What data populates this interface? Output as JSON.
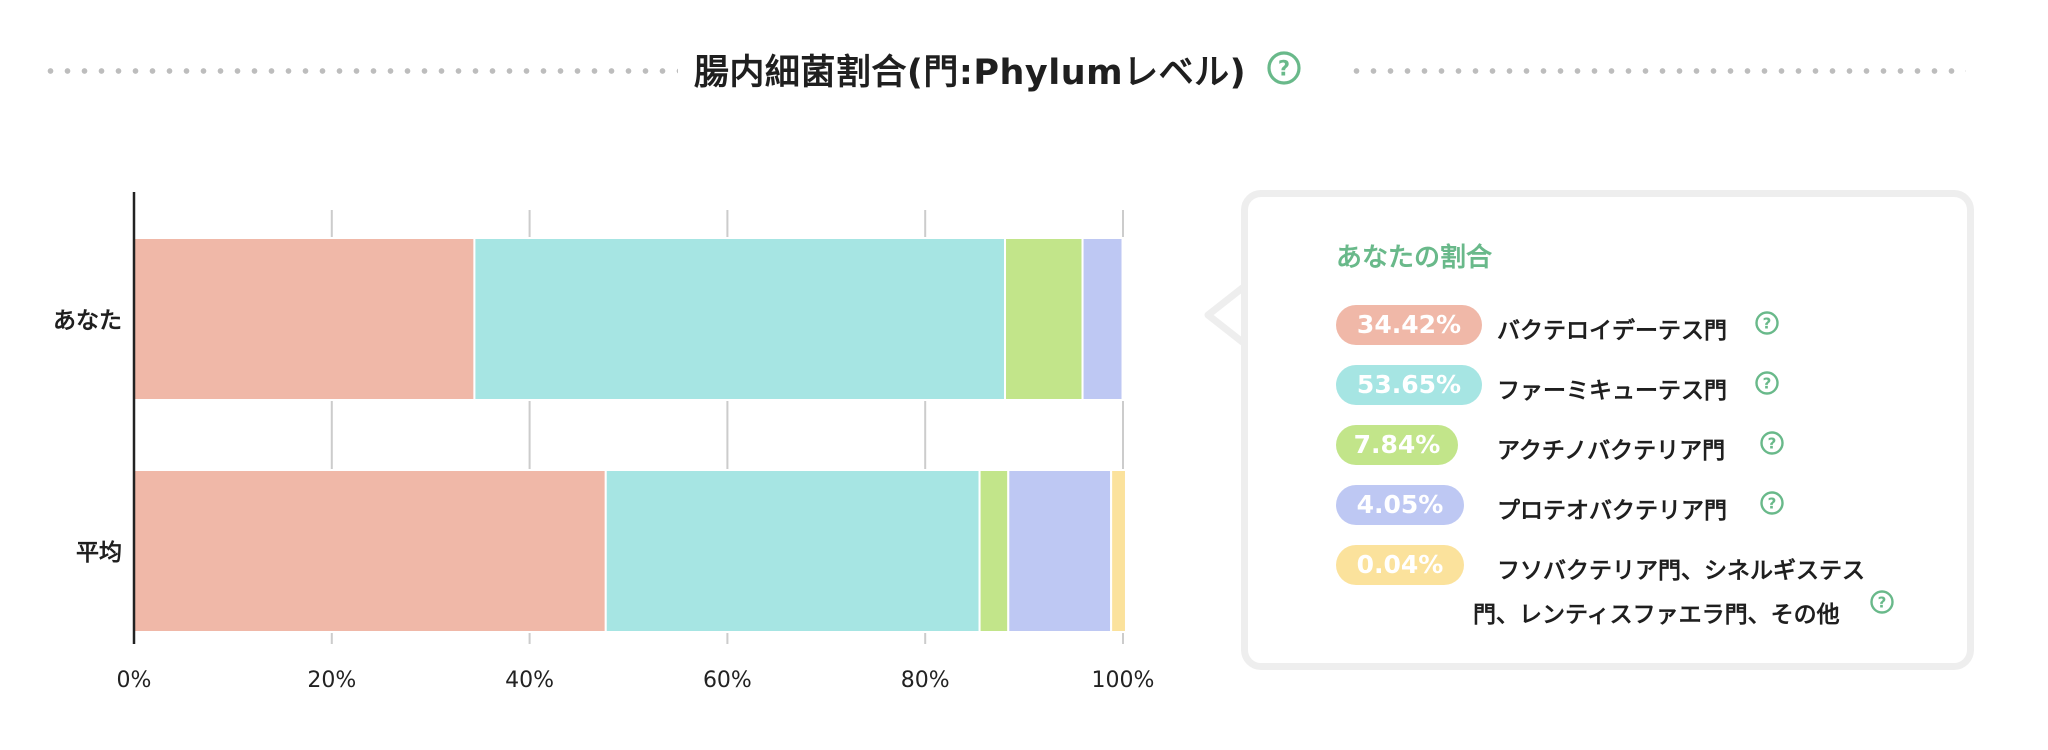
{
  "header": {
    "title": "腸内細菌割合(門:Phylumレベル)",
    "help_icon": "help-circle-icon"
  },
  "chart_data": {
    "type": "bar",
    "orientation": "horizontal",
    "stacked": true,
    "categories": [
      "あなた",
      "平均"
    ],
    "series": [
      {
        "name": "バクテロイデーテス門",
        "color": "#f0b8a8",
        "values": [
          34.42,
          47.7
        ]
      },
      {
        "name": "ファーミキューテス門",
        "color": "#a6e5e3",
        "values": [
          53.65,
          37.8
        ]
      },
      {
        "name": "アクチノバクテリア門",
        "color": "#c2e58a",
        "values": [
          7.84,
          2.9
        ]
      },
      {
        "name": "プロテオバクテリア門",
        "color": "#bec8f3",
        "values": [
          4.05,
          10.4
        ]
      },
      {
        "name": "フソバクテリア門、シネルギステス門、レンティスファエラ門、その他",
        "color": "#fbe29c",
        "values": [
          0.04,
          1.5
        ]
      }
    ],
    "xlim": [
      0,
      100
    ],
    "xticks": [
      "0%",
      "20%",
      "40%",
      "60%",
      "80%",
      "100%"
    ],
    "grid": "vertical",
    "legend": "right"
  },
  "legend": {
    "title": "あなたの割合",
    "items": [
      {
        "pct": "34.42%",
        "label": "バクテロイデーテス門",
        "color": "#f0b8a8"
      },
      {
        "pct": "53.65%",
        "label": "ファーミキューテス門",
        "color": "#a6e5e3"
      },
      {
        "pct": "7.84%",
        "label": "アクチノバクテリア門",
        "color": "#c2e58a"
      },
      {
        "pct": "4.05%",
        "label": "プロテオバクテリア門",
        "color": "#bec8f3"
      },
      {
        "pct": "0.04%",
        "label": "フソバクテリア門、シネルギステス",
        "label2": "門、レンティスファエラ門、その他",
        "color": "#fbe29c"
      }
    ]
  },
  "colors": {
    "accent": "#69b98a",
    "card_border": "#eeeeee",
    "grid": "#cccccc"
  }
}
